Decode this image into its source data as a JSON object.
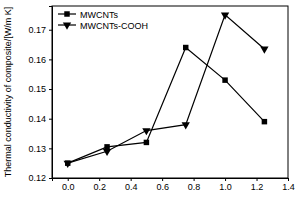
{
  "chart_data": {
    "type": "line",
    "y_label": "Thermal conductivity of composite/[W/m K]",
    "x": [
      0,
      0.25,
      0.5,
      0.75,
      1.0,
      1.25
    ],
    "series": [
      {
        "name": "MWCNTs",
        "color": "#000000",
        "marker": "square",
        "line_style": "solid",
        "values": [
          0.125,
          0.1305,
          0.132,
          0.164,
          0.153,
          0.139
        ]
      },
      {
        "name": "MWCNTs-COOH",
        "color": "#000000",
        "marker": "triangle-down",
        "line_style": "solid",
        "values": [
          0.125,
          0.129,
          0.136,
          0.138,
          0.175,
          0.1635
        ]
      }
    ],
    "xlim": [
      -0.1,
      1.4
    ],
    "xticks": [
      {
        "value": 0,
        "label": "0.0"
      },
      0.2,
      0.4,
      0.6,
      0.8,
      {
        "value": 1,
        "label": "1.0"
      },
      1.2,
      1.4
    ],
    "ylim": [
      0.12,
      0.178
    ],
    "yticks": [
      0.12,
      0.13,
      0.14,
      0.15,
      0.16,
      0.17
    ],
    "legend": "upper-left",
    "grid": false
  }
}
